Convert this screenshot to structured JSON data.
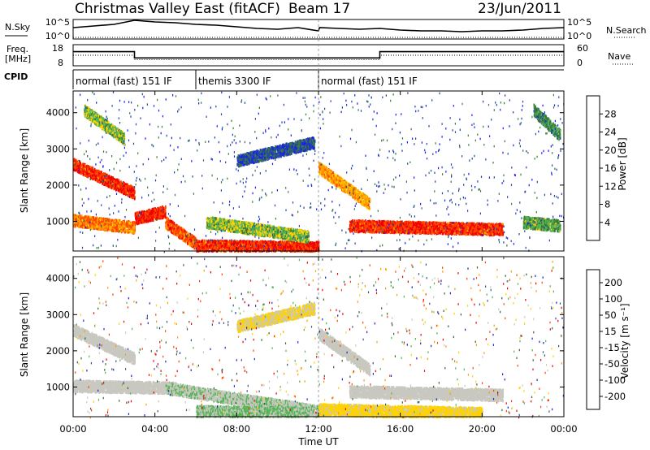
{
  "header": {
    "title": "Christmas Valley East (fitACF)",
    "beam": "Beam 17",
    "date": "23/Jun/2011"
  },
  "top_strip": {
    "nsky_label": "N.Sky",
    "nsearch_label": "N.Search",
    "left_ticks": [
      "10^5",
      "10^0"
    ],
    "right_ticks": [
      "10^5",
      "10^0"
    ],
    "noise_trace": [
      [
        0,
        12
      ],
      [
        1,
        14
      ],
      [
        2,
        16
      ],
      [
        3,
        21
      ],
      [
        4,
        19
      ],
      [
        5,
        18
      ],
      [
        6,
        16
      ],
      [
        7,
        15
      ],
      [
        8,
        13
      ],
      [
        9,
        11
      ],
      [
        10,
        10
      ],
      [
        11,
        12
      ],
      [
        12,
        8
      ],
      [
        12.05,
        12
      ],
      [
        13,
        11
      ],
      [
        14,
        10
      ],
      [
        15,
        11
      ],
      [
        16,
        9
      ],
      [
        17,
        8
      ],
      [
        18,
        8
      ],
      [
        19,
        7
      ],
      [
        20,
        8
      ],
      [
        21,
        8
      ],
      [
        22,
        9
      ],
      [
        23,
        11
      ],
      [
        24,
        12
      ]
    ],
    "freq_label": "Freq.",
    "freq_unit": "[MHz]",
    "freq_ticks": [
      18,
      8
    ],
    "nave_label": "Nave",
    "nave_ticks": [
      60,
      0
    ],
    "freq_trace": [
      [
        0,
        15
      ],
      [
        3,
        15
      ],
      [
        3,
        11.5
      ],
      [
        12,
        11.5
      ],
      [
        15,
        11.5
      ],
      [
        15,
        15
      ],
      [
        24,
        15
      ]
    ],
    "nave_trace": [
      [
        0,
        30
      ],
      [
        3,
        30
      ],
      [
        3,
        15
      ],
      [
        15,
        15
      ],
      [
        15,
        30
      ],
      [
        24,
        30
      ]
    ],
    "cpid_label": "CPID",
    "cpid_segments": [
      {
        "start": 0,
        "end": 6,
        "label": "normal (fast) 151 IF"
      },
      {
        "start": 6,
        "end": 12,
        "label": "themis 3300 IF"
      },
      {
        "start": 12,
        "end": 24,
        "label": "normal (fast) 151 IF"
      }
    ]
  },
  "power_panel": {
    "ylabel": "Slant Range [km]",
    "yticks": [
      1000,
      2000,
      3000,
      4000
    ],
    "colorbar_label": "Power [dB]",
    "colorbar_ticks": [
      "4",
      "8",
      "12",
      "16",
      "20",
      "24",
      "28"
    ],
    "colors": [
      "#1a1aff",
      "#2244aa",
      "#3a7a3a",
      "#55b455",
      "#ffd200",
      "#ff9900",
      "#ff4400",
      "#ee0000"
    ]
  },
  "velocity_panel": {
    "ylabel": "Slant Range [km]",
    "yticks": [
      1000,
      2000,
      3000,
      4000
    ],
    "colorbar_label": "Velocity [m s⁻¹]",
    "colorbar_ticks": [
      "200",
      "100",
      "50",
      "15",
      "-15",
      "-50",
      "-100",
      "-200"
    ],
    "colors": [
      "#2222cc",
      "#335588",
      "#336633",
      "#55b455",
      "#c8c8c0",
      "#ffd200",
      "#ff9900",
      "#ff4400",
      "#ee0000"
    ]
  },
  "x_axis": {
    "label": "Time UT",
    "ticks": [
      "00:00",
      "04:00",
      "08:00",
      "12:00",
      "16:00",
      "20:00",
      "00:00"
    ]
  },
  "chart_data": {
    "type": "heatmap",
    "title": "Christmas Valley East (fitACF)",
    "subtitle": "Beam 17",
    "xlabel": "Time UT",
    "ylabel": "Slant Range [km]",
    "xlim": [
      0,
      24
    ],
    "ylim": [
      180,
      4600
    ],
    "x_ticks": [
      "00:00",
      "04:00",
      "08:00",
      "12:00",
      "16:00",
      "20:00",
      "00:00"
    ],
    "y_ticks": [
      1000,
      2000,
      3000,
      4000
    ],
    "power_range_db": [
      0,
      30
    ],
    "velocity_range_ms": [
      -250,
      250
    ],
    "power_features": [
      {
        "from": [
          0,
          2600
        ],
        "to": [
          3,
          1800
        ],
        "power": 26
      },
      {
        "from": [
          0,
          1050
        ],
        "to": [
          3,
          850
        ],
        "power": 22
      },
      {
        "from": [
          3,
          1100
        ],
        "to": [
          4.5,
          1300
        ],
        "power": 27
      },
      {
        "from": [
          4.5,
          1000
        ],
        "to": [
          6,
          400
        ],
        "power": 24
      },
      {
        "from": [
          6,
          350
        ],
        "to": [
          12,
          300
        ],
        "power": 26
      },
      {
        "from": [
          6.5,
          1000
        ],
        "to": [
          11.5,
          600
        ],
        "power": 14
      },
      {
        "from": [
          0.5,
          4100
        ],
        "to": [
          2.5,
          3300
        ],
        "power": 14
      },
      {
        "from": [
          8,
          2700
        ],
        "to": [
          11.8,
          3200
        ],
        "power": 6
      },
      {
        "from": [
          12,
          2500
        ],
        "to": [
          14.5,
          1500
        ],
        "power": 20
      },
      {
        "from": [
          13.5,
          900
        ],
        "to": [
          21,
          800
        ],
        "power": 26
      },
      {
        "from": [
          22,
          1000
        ],
        "to": [
          23.8,
          900
        ],
        "power": 12
      },
      {
        "from": [
          22.5,
          4100
        ],
        "to": [
          23.8,
          3400
        ],
        "power": 10
      }
    ],
    "velocity_features": [
      {
        "from": [
          0,
          2600
        ],
        "to": [
          3,
          1800
        ],
        "velocity": 0
      },
      {
        "from": [
          0,
          1050
        ],
        "to": [
          5,
          1000
        ],
        "velocity": 0
      },
      {
        "from": [
          4.5,
          1000
        ],
        "to": [
          12,
          350
        ],
        "velocity": 20
      },
      {
        "from": [
          6,
          350
        ],
        "to": [
          11.5,
          300
        ],
        "velocity": 30
      },
      {
        "from": [
          12,
          2500
        ],
        "to": [
          14.5,
          1500
        ],
        "velocity": 0
      },
      {
        "from": [
          13.5,
          900
        ],
        "to": [
          21,
          800
        ],
        "velocity": 0
      },
      {
        "from": [
          12,
          400
        ],
        "to": [
          20,
          300
        ],
        "velocity": -40
      },
      {
        "from": [
          8,
          2700
        ],
        "to": [
          11.8,
          3200
        ],
        "velocity": -30
      }
    ]
  }
}
